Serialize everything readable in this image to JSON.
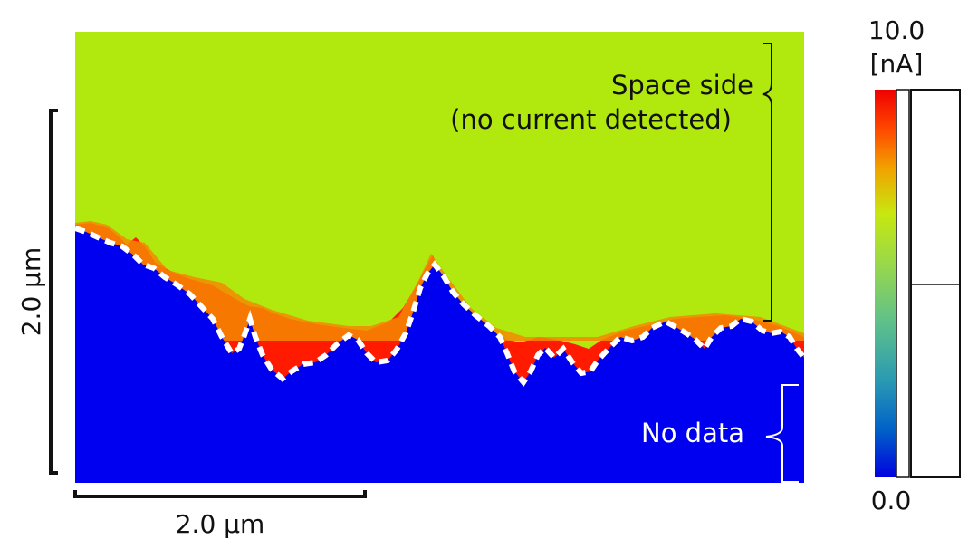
{
  "map": {
    "annotation_space": [
      "Space side",
      "(no current detected)"
    ],
    "annotation_nodata": "No data",
    "colors": {
      "space": "#b1e80e",
      "surface": "#0000f0",
      "current_hot": "#ff1a00",
      "boundary": "#ffffff"
    }
  },
  "scale": {
    "vertical_label": "2.0 µm",
    "horizontal_label": "2.0 µm"
  },
  "colorbar": {
    "max_value": "10.0",
    "unit": "[nA]",
    "min_value": "0.0",
    "gradient_stops": [
      "#0000e0",
      "#0060c8",
      "#2a9ab2",
      "#5fc08a",
      "#98d84a",
      "#c7e80f",
      "#f2a000",
      "#ff4600",
      "#f00000"
    ]
  }
}
